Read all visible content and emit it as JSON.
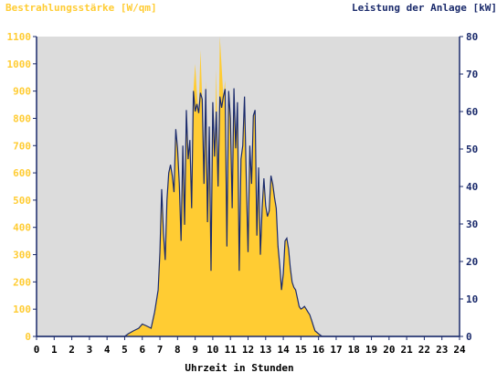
{
  "chart_data": {
    "type": "area",
    "title_left": "Bestrahlungsstärke [W/qm]",
    "title_right": "Leistung der Anlage [kW]",
    "xlabel": "Uhrzeit in Stunden",
    "x_ticks": [
      "0",
      "1",
      "2",
      "3",
      "4",
      "5",
      "6",
      "7",
      "8",
      "9",
      "10",
      "11",
      "12",
      "13",
      "14",
      "15",
      "16",
      "17",
      "18",
      "19",
      "20",
      "21",
      "22",
      "23",
      "24"
    ],
    "y_left_ticks": [
      "0",
      "100",
      "200",
      "300",
      "400",
      "500",
      "600",
      "700",
      "800",
      "900",
      "1000",
      "1100"
    ],
    "y_right_ticks": [
      "0",
      "10",
      "20",
      "30",
      "40",
      "50",
      "60",
      "70",
      "80"
    ],
    "xlim": [
      0,
      24
    ],
    "ylim_left": [
      0,
      1100
    ],
    "ylim_right": [
      0,
      80
    ],
    "grid": false,
    "colors": {
      "plot_bg": "#dcdcdc",
      "irradiance_fill": "#ffcc33",
      "power_line": "#1a2a6b",
      "left_axis_text": "#ffcc33",
      "right_axis_text": "#1a2a6b",
      "x_axis_text": "#000000"
    },
    "series": [
      {
        "kind": "area",
        "axis": "left",
        "x": [
          0,
          5.0,
          5.2,
          5.5,
          5.8,
          6.0,
          6.2,
          6.5,
          6.7,
          6.9,
          7.0,
          7.1,
          7.2,
          7.3,
          7.4,
          7.5,
          7.6,
          7.7,
          7.8,
          7.9,
          8.0,
          8.1,
          8.2,
          8.3,
          8.4,
          8.5,
          8.6,
          8.7,
          8.8,
          8.9,
          9.0,
          9.1,
          9.2,
          9.3,
          9.4,
          9.5,
          9.6,
          9.7,
          9.8,
          9.9,
          10.0,
          10.1,
          10.2,
          10.3,
          10.4,
          10.5,
          10.6,
          10.7,
          10.8,
          10.9,
          11.0,
          11.1,
          11.2,
          11.3,
          11.4,
          11.5,
          11.6,
          11.7,
          11.8,
          11.9,
          12.0,
          12.1,
          12.2,
          12.3,
          12.4,
          12.5,
          12.6,
          12.7,
          12.8,
          12.9,
          13.0,
          13.1,
          13.2,
          13.3,
          13.4,
          13.5,
          13.6,
          13.7,
          13.8,
          13.9,
          14.0,
          14.1,
          14.2,
          14.3,
          14.4,
          14.5,
          14.6,
          14.7,
          14.8,
          14.9,
          15.0,
          15.1,
          15.2,
          15.3,
          15.4,
          15.5,
          15.6,
          15.7,
          15.8,
          16.0,
          16.2,
          16.4,
          16.6,
          16.8,
          17.0,
          17.2,
          17.4,
          17.6,
          17.8,
          18.0,
          18.2,
          18.4,
          18.6,
          18.8,
          19.0,
          19.1,
          19.2,
          19.3,
          24
        ],
        "y": [
          0,
          0,
          10,
          20,
          30,
          45,
          40,
          30,
          90,
          170,
          310,
          540,
          380,
          280,
          500,
          600,
          630,
          590,
          530,
          760,
          690,
          560,
          350,
          700,
          410,
          830,
          650,
          720,
          470,
          900,
          1000,
          890,
          820,
          1050,
          870,
          560,
          940,
          420,
          770,
          240,
          860,
          660,
          980,
          550,
          1100,
          990,
          880,
          940,
          330,
          900,
          800,
          470,
          910,
          690,
          860,
          240,
          650,
          700,
          880,
          580,
          310,
          700,
          560,
          810,
          830,
          370,
          620,
          300,
          470,
          580,
          480,
          440,
          460,
          590,
          560,
          510,
          470,
          330,
          260,
          170,
          230,
          350,
          360,
          320,
          250,
          200,
          180,
          170,
          140,
          110,
          100,
          105,
          110,
          100,
          90,
          80,
          60,
          40,
          20,
          10,
          0,
          0,
          0,
          0,
          0,
          0,
          0,
          0,
          0,
          0,
          0,
          0,
          0,
          0,
          0,
          0,
          0,
          0,
          0
        ],
        "name": ""
      },
      {
        "kind": "line",
        "axis": "right",
        "x": [
          0,
          5.0,
          5.2,
          5.5,
          5.8,
          6.0,
          6.2,
          6.5,
          6.7,
          6.9,
          7.0,
          7.1,
          7.2,
          7.3,
          7.4,
          7.5,
          7.6,
          7.7,
          7.8,
          7.9,
          8.0,
          8.1,
          8.2,
          8.3,
          8.4,
          8.5,
          8.6,
          8.7,
          8.8,
          8.9,
          9.0,
          9.1,
          9.2,
          9.3,
          9.4,
          9.5,
          9.6,
          9.7,
          9.8,
          9.9,
          10.0,
          10.1,
          10.2,
          10.3,
          10.4,
          10.5,
          10.6,
          10.7,
          10.8,
          10.9,
          11.0,
          11.1,
          11.2,
          11.3,
          11.4,
          11.5,
          11.6,
          11.7,
          11.8,
          11.9,
          12.0,
          12.1,
          12.2,
          12.3,
          12.4,
          12.5,
          12.6,
          12.7,
          12.8,
          12.9,
          13.0,
          13.1,
          13.2,
          13.3,
          13.4,
          13.5,
          13.6,
          13.7,
          13.8,
          13.9,
          14.0,
          14.1,
          14.2,
          14.3,
          14.4,
          14.5,
          14.6,
          14.7,
          14.8,
          14.9,
          15.0,
          15.1,
          15.2,
          15.3,
          15.4,
          15.5,
          15.6,
          15.7,
          15.8,
          16.0,
          16.2,
          16.4,
          16.6,
          16.8,
          17.0,
          17.2,
          17.4,
          17.6,
          17.8,
          18.0,
          18.2,
          18.4,
          18.6,
          18.8,
          19.0,
          19.1,
          19.2,
          19.3,
          24
        ],
        "y": [
          0,
          0,
          0.7,
          1.5,
          2.2,
          3.3,
          2.9,
          2.2,
          6.5,
          12.4,
          22.5,
          39.3,
          27.6,
          20.4,
          36.4,
          43.6,
          45.8,
          42.9,
          38.5,
          55.3,
          50.2,
          40.7,
          25.5,
          50.9,
          29.8,
          60.4,
          47.3,
          52.4,
          34.2,
          65.5,
          60.0,
          62.0,
          59.6,
          65.0,
          63.3,
          40.7,
          66.0,
          30.5,
          56.0,
          17.5,
          62.5,
          48.0,
          60.0,
          40.0,
          64.0,
          61.0,
          64.0,
          66.0,
          24.0,
          65.5,
          58.2,
          34.2,
          66.2,
          50.2,
          62.5,
          17.5,
          47.3,
          50.9,
          64.0,
          42.2,
          22.5,
          50.9,
          40.7,
          58.9,
          60.4,
          26.9,
          45.1,
          21.8,
          34.2,
          42.2,
          34.9,
          32.0,
          33.5,
          42.9,
          40.7,
          37.1,
          34.2,
          24.0,
          18.9,
          12.4,
          16.7,
          25.5,
          26.2,
          23.3,
          18.2,
          14.5,
          13.1,
          12.4,
          10.2,
          8.0,
          7.3,
          7.6,
          8.0,
          7.3,
          6.5,
          5.8,
          4.4,
          2.9,
          1.5,
          0.7,
          0,
          0,
          0,
          0,
          0,
          0,
          0,
          0,
          0,
          0,
          0,
          0,
          0,
          0,
          0,
          0,
          0,
          0,
          0
        ],
        "name": ""
      }
    ]
  }
}
